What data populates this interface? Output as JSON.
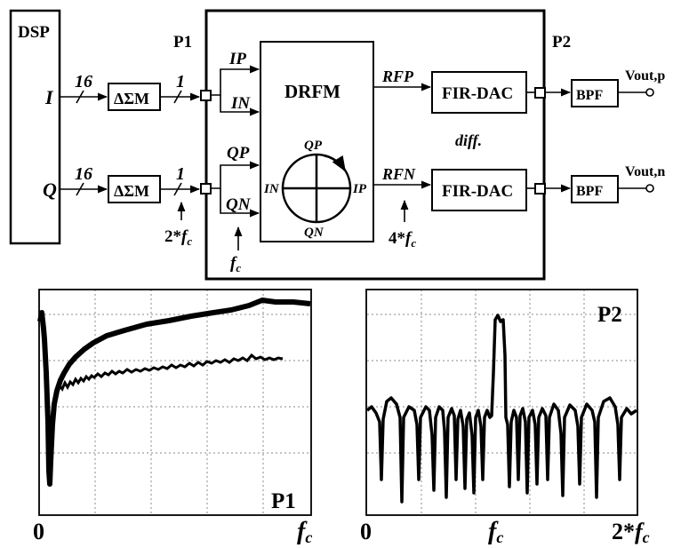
{
  "blocks": {
    "dsp": "DSP",
    "dsm": "ΔΣM",
    "drfm": "DRFM",
    "fir_dac": "FIR-DAC",
    "bpf": "BPF"
  },
  "ports": {
    "p1": "P1",
    "p2": "P2"
  },
  "signals": {
    "i": "I",
    "q": "Q",
    "bus_width": "16",
    "bit_width": "1",
    "ip": "IP",
    "in": "IN",
    "qp": "QP",
    "qn": "QN",
    "rfp": "RFP",
    "rfn": "RFN",
    "vout_p": "Vout,p",
    "vout_n": "Vout,n",
    "diff": "diff."
  },
  "clocks": {
    "two_fc_prefix": "2*",
    "four_fc_prefix": "4*",
    "f": "f",
    "c": "c"
  },
  "plot_p1": {
    "label": "P1",
    "x_start": "0",
    "x_end_f": "f",
    "x_end_sub": "c"
  },
  "plot_p2": {
    "label": "P2",
    "x_start": "0",
    "x_mid_f": "f",
    "x_mid_sub": "c",
    "x_end_prefix": "2*",
    "x_end_f": "f",
    "x_end_sub": "c"
  }
}
